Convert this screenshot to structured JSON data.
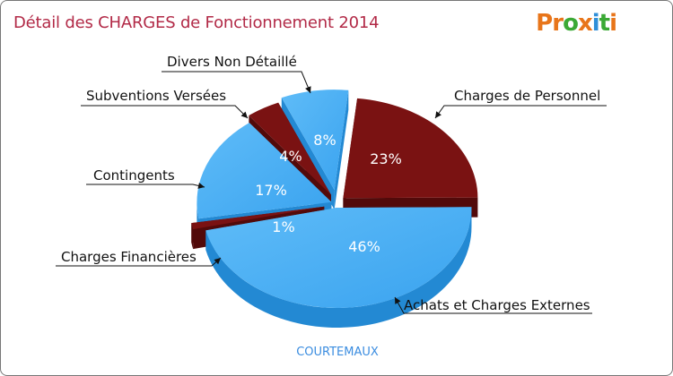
{
  "header": {
    "title": "Détail des CHARGES de Fonctionnement 2014",
    "logo_text": "Proxiti"
  },
  "footer": {
    "commune": "COURTEMAUX"
  },
  "colors": {
    "blue": "#40aaf4",
    "blue_dark": "#2389d3",
    "red": "#7a1212",
    "red_dark": "#520a0a",
    "title": "#b22a47"
  },
  "chart_data": {
    "type": "pie",
    "title": "Détail des CHARGES de Fonctionnement 2014",
    "subtitle": "COURTEMAUX",
    "unit": "%",
    "slices": [
      {
        "label": "Charges de Personnel",
        "value": 23,
        "pct_label": "23%",
        "color": "#7a1212"
      },
      {
        "label": "Achats et Charges Externes",
        "value": 46,
        "pct_label": "46%",
        "color": "#40aaf4"
      },
      {
        "label": "Charges Financières",
        "value": 1,
        "pct_label": "1%",
        "color": "#7a1212"
      },
      {
        "label": "Contingents",
        "value": 17,
        "pct_label": "17%",
        "color": "#40aaf4"
      },
      {
        "label": "Subventions Versées",
        "value": 4,
        "pct_label": "4%",
        "color": "#7a1212"
      },
      {
        "label": "Divers Non Détaillé",
        "value": 8,
        "pct_label": "8%",
        "color": "#40aaf4"
      }
    ]
  }
}
